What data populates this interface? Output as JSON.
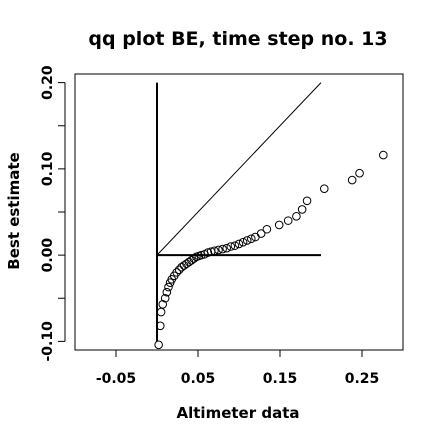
{
  "chart_data": {
    "type": "scatter",
    "title": "qq plot BE, time step no. 13",
    "xlabel": "Altimeter data",
    "ylabel": "Best estimate",
    "xlim": [
      -0.1,
      0.3
    ],
    "ylim": [
      -0.11,
      0.21
    ],
    "x_ticks": [
      -0.05,
      0.05,
      0.15,
      0.25
    ],
    "x_tick_labels": [
      "-0.05",
      "0.05",
      "0.15",
      "0.25"
    ],
    "y_ticks": [
      -0.1,
      0.0,
      0.1,
      0.2
    ],
    "y_tick_labels": [
      "-0.10",
      "0.00",
      "0.10",
      "0.20"
    ],
    "grid": false,
    "legend": "none",
    "reference_lines": [
      {
        "kind": "diagonal",
        "x": [
          0.0,
          0.2
        ],
        "y": [
          0.0,
          0.2
        ]
      },
      {
        "kind": "horizontal",
        "x": [
          0.0,
          0.2
        ],
        "y": [
          0.0,
          0.0
        ]
      },
      {
        "kind": "vertical",
        "x": [
          0.0,
          0.0
        ],
        "y": [
          -0.1,
          0.2
        ]
      }
    ],
    "points": [
      {
        "x": 0.002,
        "y": -0.104
      },
      {
        "x": 0.004,
        "y": -0.082
      },
      {
        "x": 0.005,
        "y": -0.066
      },
      {
        "x": 0.007,
        "y": -0.057
      },
      {
        "x": 0.01,
        "y": -0.05
      },
      {
        "x": 0.012,
        "y": -0.043
      },
      {
        "x": 0.014,
        "y": -0.037
      },
      {
        "x": 0.016,
        "y": -0.032
      },
      {
        "x": 0.018,
        "y": -0.028
      },
      {
        "x": 0.021,
        "y": -0.024
      },
      {
        "x": 0.024,
        "y": -0.02
      },
      {
        "x": 0.027,
        "y": -0.017
      },
      {
        "x": 0.03,
        "y": -0.014
      },
      {
        "x": 0.033,
        "y": -0.012
      },
      {
        "x": 0.036,
        "y": -0.01
      },
      {
        "x": 0.039,
        "y": -0.008
      },
      {
        "x": 0.042,
        "y": -0.006
      },
      {
        "x": 0.045,
        "y": -0.004
      },
      {
        "x": 0.048,
        "y": -0.002
      },
      {
        "x": 0.051,
        "y": -0.001
      },
      {
        "x": 0.054,
        "y": 0.0
      },
      {
        "x": 0.058,
        "y": 0.001
      },
      {
        "x": 0.062,
        "y": 0.003
      },
      {
        "x": 0.066,
        "y": 0.004
      },
      {
        "x": 0.07,
        "y": 0.005
      },
      {
        "x": 0.075,
        "y": 0.006
      },
      {
        "x": 0.08,
        "y": 0.007
      },
      {
        "x": 0.085,
        "y": 0.008
      },
      {
        "x": 0.09,
        "y": 0.01
      },
      {
        "x": 0.095,
        "y": 0.011
      },
      {
        "x": 0.1,
        "y": 0.013
      },
      {
        "x": 0.105,
        "y": 0.015
      },
      {
        "x": 0.11,
        "y": 0.017
      },
      {
        "x": 0.115,
        "y": 0.019
      },
      {
        "x": 0.12,
        "y": 0.021
      },
      {
        "x": 0.127,
        "y": 0.025
      },
      {
        "x": 0.134,
        "y": 0.03
      },
      {
        "x": 0.149,
        "y": 0.035
      },
      {
        "x": 0.16,
        "y": 0.04
      },
      {
        "x": 0.17,
        "y": 0.045
      },
      {
        "x": 0.177,
        "y": 0.053
      },
      {
        "x": 0.183,
        "y": 0.063
      },
      {
        "x": 0.204,
        "y": 0.077
      },
      {
        "x": 0.238,
        "y": 0.087
      },
      {
        "x": 0.247,
        "y": 0.095
      },
      {
        "x": 0.276,
        "y": 0.116
      }
    ]
  }
}
